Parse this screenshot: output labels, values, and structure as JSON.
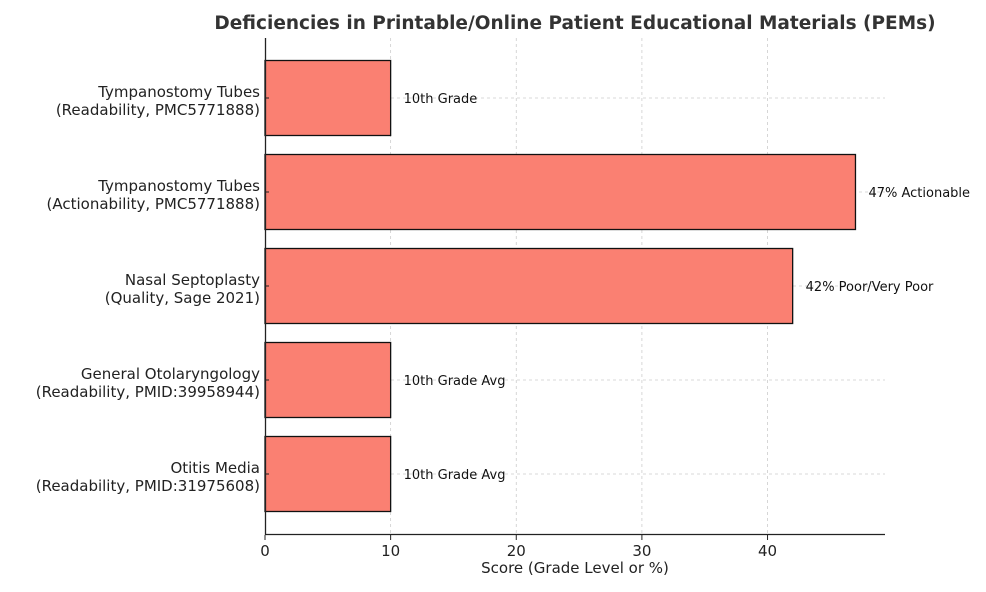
{
  "chart_data": {
    "type": "bar",
    "orientation": "horizontal",
    "title": "Deficiencies in Printable/Online Patient Educational Materials (PEMs)",
    "xlabel": "Score (Grade Level or %)",
    "ylabel": "",
    "xlim": [
      0,
      49.35
    ],
    "xticks": [
      0,
      10,
      20,
      30,
      40
    ],
    "grid": true,
    "bar_color": "#FA8072",
    "categories": [
      [
        "Tympanostomy Tubes",
        "(Readability, PMC5771888)"
      ],
      [
        "Tympanostomy Tubes",
        "(Actionability, PMC5771888)"
      ],
      [
        "Nasal Septoplasty",
        "(Quality, Sage 2021)"
      ],
      [
        "General Otolaryngology",
        "(Readability, PMID:39958944)"
      ],
      [
        "Otitis Media",
        "(Readability, PMID:31975608)"
      ]
    ],
    "values": [
      10,
      47,
      42,
      10,
      10
    ],
    "data_labels": [
      "10th Grade",
      "47% Actionable",
      "42% Poor/Very Poor",
      "10th Grade Avg",
      "10th Grade Avg"
    ]
  }
}
